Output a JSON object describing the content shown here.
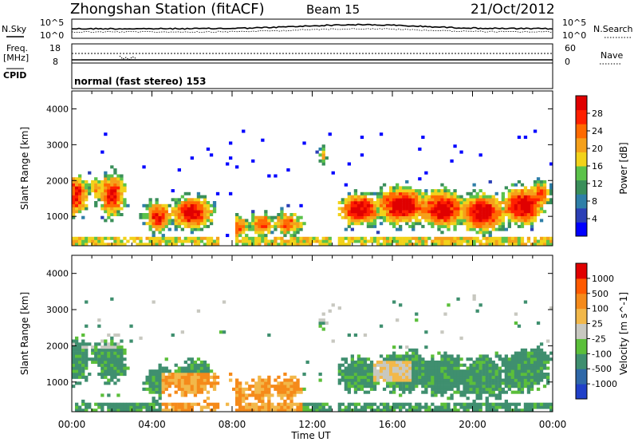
{
  "header": {
    "station": "Zhongshan Station (fitACF)",
    "beam": "Beam 15",
    "date": "21/Oct/2012",
    "cpid_value": "normal (fast stereo) 153"
  },
  "labels": {
    "nsky": "N.Sky",
    "nsearch": "N.Search",
    "nave": "Nave",
    "freq_line1": "Freq.",
    "freq_line2": "[MHz]",
    "cpid": "CPID",
    "nsky_tick_hi": "10^5",
    "nsky_tick_lo": "10^0",
    "nsearch_tick_hi": "10^5",
    "nsearch_tick_lo": "10^0",
    "freq_tick_hi": "18",
    "freq_tick_lo": "8",
    "nave_tick_hi": "60",
    "nave_tick_lo": "0"
  },
  "chart_data": [
    {
      "type": "heatmap",
      "title": "Power",
      "colorbar_label": "Power [dB]",
      "ylabel": "Slant Range [km]",
      "xlabel": "Time UT",
      "x_ticks": [
        "00:00",
        "04:00",
        "08:00",
        "12:00",
        "16:00",
        "20:00",
        "00:00"
      ],
      "x_range_hours": [
        0,
        24
      ],
      "y_range_km": [
        180,
        4500
      ],
      "y_ticks": [
        1000,
        2000,
        3000,
        4000
      ],
      "colorbar_ticks": [
        "4",
        "8",
        "12",
        "16",
        "20",
        "24",
        "28"
      ],
      "colorbar_range": [
        0,
        32
      ],
      "colorbar_colors": [
        "#0000ff",
        "#2b3fb6",
        "#2f7fa8",
        "#3a8f5a",
        "#5bc24a",
        "#f2d21a",
        "#f5a01a",
        "#ff6a00",
        "#ff2000",
        "#e00000"
      ]
    },
    {
      "type": "heatmap",
      "title": "Velocity",
      "colorbar_label": "Velocity [m s^-1]",
      "ylabel": "Slant Range [km]",
      "xlabel": "Time UT",
      "x_ticks": [
        "00:00",
        "04:00",
        "08:00",
        "12:00",
        "16:00",
        "20:00",
        "00:00"
      ],
      "x_range_hours": [
        0,
        24
      ],
      "y_range_km": [
        180,
        4500
      ],
      "y_ticks": [
        1000,
        2000,
        3000,
        4000
      ],
      "colorbar_ticks": [
        "1000",
        "500",
        "100",
        "25",
        "-25",
        "-100",
        "-500",
        "-1000"
      ],
      "colorbar_colors": [
        "#2040c8",
        "#2f68a8",
        "#3f8f6f",
        "#5bbf3a",
        "#c8c8c0",
        "#f2b84a",
        "#f58a1a",
        "#ff5a00",
        "#e00000"
      ]
    }
  ]
}
